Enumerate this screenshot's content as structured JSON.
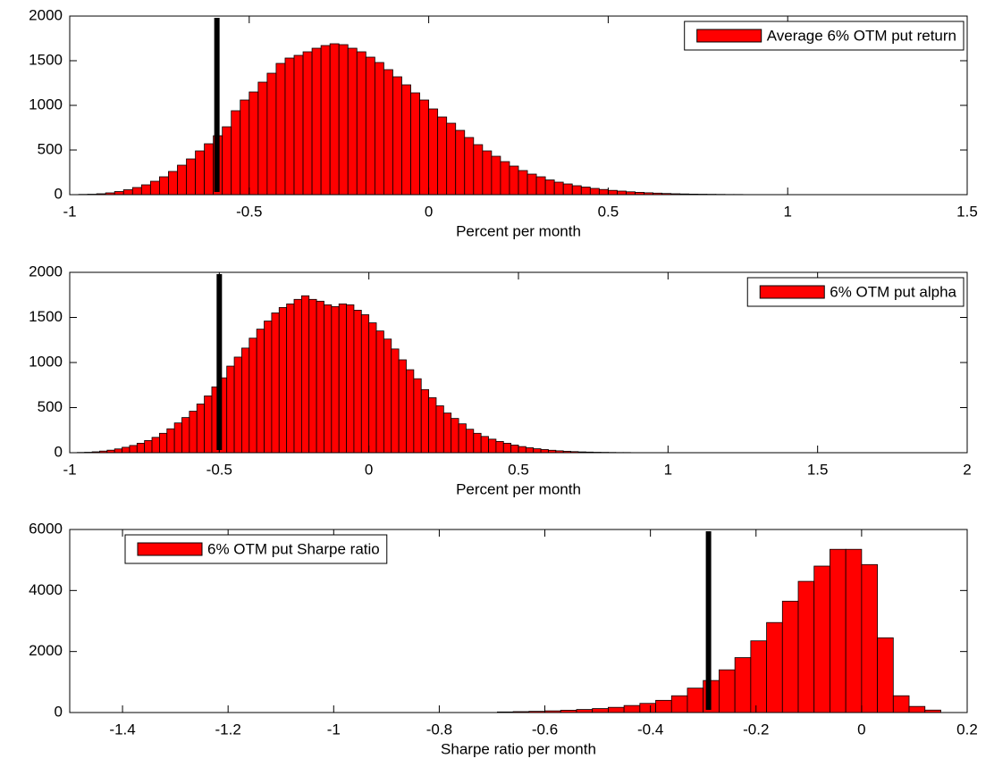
{
  "chart_data": [
    {
      "type": "histogram",
      "xlabel": "Percent per month",
      "bins": [
        -0.975,
        -0.95,
        -0.925,
        -0.9,
        -0.875,
        -0.85,
        -0.825,
        -0.8,
        -0.775,
        -0.75,
        -0.725,
        -0.7,
        -0.675,
        -0.65,
        -0.625,
        -0.6,
        -0.575,
        -0.55,
        -0.525,
        -0.5,
        -0.475,
        -0.45,
        -0.425,
        -0.4,
        -0.375,
        -0.35,
        -0.325,
        -0.3,
        -0.275,
        -0.25,
        -0.225,
        -0.2,
        -0.175,
        -0.15,
        -0.125,
        -0.1,
        -0.075,
        -0.05,
        -0.025,
        0,
        0.025,
        0.05,
        0.075,
        0.1,
        0.125,
        0.15,
        0.175,
        0.2,
        0.225,
        0.25,
        0.275,
        0.3,
        0.325,
        0.35,
        0.375,
        0.4,
        0.425,
        0.45,
        0.475,
        0.5,
        0.525,
        0.55,
        0.575,
        0.6,
        0.625,
        0.65,
        0.675,
        0.7,
        0.725,
        0.75,
        0.775,
        0.8,
        0.825,
        0.85,
        0.875,
        0.9,
        0.925,
        0.95,
        0.975,
        1.0
      ],
      "series": [
        {
          "name": "Average 6% OTM put return",
          "color": "#ff0000",
          "values": [
            3,
            5,
            10,
            20,
            35,
            55,
            80,
            110,
            150,
            200,
            260,
            330,
            400,
            490,
            570,
            660,
            760,
            940,
            1060,
            1150,
            1260,
            1360,
            1470,
            1530,
            1560,
            1600,
            1640,
            1670,
            1690,
            1680,
            1640,
            1600,
            1540,
            1480,
            1400,
            1320,
            1230,
            1140,
            1060,
            960,
            870,
            800,
            720,
            640,
            560,
            490,
            430,
            370,
            320,
            270,
            230,
            200,
            165,
            140,
            120,
            100,
            85,
            70,
            58,
            48,
            40,
            32,
            26,
            21,
            17,
            13,
            10,
            8,
            6,
            5,
            4,
            3,
            2,
            2,
            1,
            1,
            1,
            1,
            1
          ]
        }
      ],
      "marker_x": -0.59,
      "marker_color": "#000000",
      "xlim": [
        -1,
        1.5
      ],
      "xticks": [
        -1,
        -0.5,
        0,
        0.5,
        1,
        1.5
      ],
      "ylim": [
        0,
        2000
      ],
      "yticks": [
        0,
        500,
        1000,
        1500,
        2000
      ],
      "legend": "upper right"
    },
    {
      "type": "histogram",
      "xlabel": "Percent per month",
      "bins": [
        -0.975,
        -0.95,
        -0.925,
        -0.9,
        -0.875,
        -0.85,
        -0.825,
        -0.8,
        -0.775,
        -0.75,
        -0.725,
        -0.7,
        -0.675,
        -0.65,
        -0.625,
        -0.6,
        -0.575,
        -0.55,
        -0.525,
        -0.5,
        -0.475,
        -0.45,
        -0.425,
        -0.4,
        -0.375,
        -0.35,
        -0.325,
        -0.3,
        -0.275,
        -0.25,
        -0.225,
        -0.2,
        -0.175,
        -0.15,
        -0.125,
        -0.1,
        -0.075,
        -0.05,
        -0.025,
        0,
        0.025,
        0.05,
        0.075,
        0.1,
        0.125,
        0.15,
        0.175,
        0.2,
        0.225,
        0.25,
        0.275,
        0.3,
        0.325,
        0.35,
        0.375,
        0.4,
        0.425,
        0.45,
        0.475,
        0.5,
        0.525,
        0.55,
        0.575,
        0.6,
        0.625,
        0.65,
        0.675,
        0.7,
        0.725,
        0.75,
        0.775,
        0.8,
        0.825,
        0.85,
        0.875,
        0.9,
        0.925,
        0.95,
        0.975,
        1.0
      ],
      "series": [
        {
          "name": "6% OTM put alpha",
          "color": "#ff0000",
          "values": [
            3,
            5,
            10,
            18,
            28,
            42,
            60,
            80,
            105,
            135,
            170,
            215,
            265,
            330,
            390,
            460,
            540,
            630,
            730,
            830,
            960,
            1060,
            1160,
            1270,
            1370,
            1460,
            1550,
            1610,
            1650,
            1700,
            1740,
            1700,
            1680,
            1640,
            1620,
            1650,
            1640,
            1580,
            1530,
            1440,
            1350,
            1260,
            1150,
            1030,
            920,
            820,
            700,
            610,
            520,
            440,
            380,
            320,
            260,
            215,
            180,
            150,
            125,
            105,
            85,
            68,
            55,
            44,
            35,
            27,
            21,
            16,
            12,
            9,
            7,
            5,
            4,
            3,
            2,
            2,
            1,
            1,
            1,
            1,
            1
          ]
        }
      ],
      "marker_x": -0.5,
      "marker_color": "#000000",
      "xlim": [
        -1,
        2
      ],
      "xticks": [
        -1,
        -0.5,
        0,
        0.5,
        1,
        1.5,
        2
      ],
      "ylim": [
        0,
        2000
      ],
      "yticks": [
        0,
        500,
        1000,
        1500,
        2000
      ],
      "legend": "upper right"
    },
    {
      "type": "histogram",
      "xlabel": "Sharpe ratio per month",
      "bins": [
        -0.69,
        -0.66,
        -0.63,
        -0.6,
        -0.57,
        -0.54,
        -0.51,
        -0.48,
        -0.45,
        -0.42,
        -0.39,
        -0.36,
        -0.33,
        -0.3,
        -0.27,
        -0.24,
        -0.21,
        -0.18,
        -0.15,
        -0.12,
        -0.09,
        -0.06,
        -0.03,
        0,
        0.03,
        0.06,
        0.09,
        0.12,
        0.15
      ],
      "series": [
        {
          "name": "6% OTM put Sharpe ratio",
          "color": "#ff0000",
          "values": [
            20,
            30,
            40,
            55,
            75,
            100,
            130,
            170,
            230,
            300,
            400,
            550,
            800,
            1050,
            1400,
            1800,
            2350,
            2950,
            3650,
            4300,
            4800,
            5350,
            5350,
            4850,
            2450,
            550,
            200,
            80
          ]
        }
      ],
      "marker_x": -0.29,
      "marker_color": "#000000",
      "xlim": [
        -1.5,
        0.2
      ],
      "xticks": [
        -1.4,
        -1.2,
        -1,
        -0.8,
        -0.6,
        -0.4,
        -0.2,
        0,
        0.2
      ],
      "ylim": [
        0,
        6000
      ],
      "yticks": [
        0,
        2000,
        4000,
        6000
      ],
      "legend": "upper left"
    }
  ]
}
